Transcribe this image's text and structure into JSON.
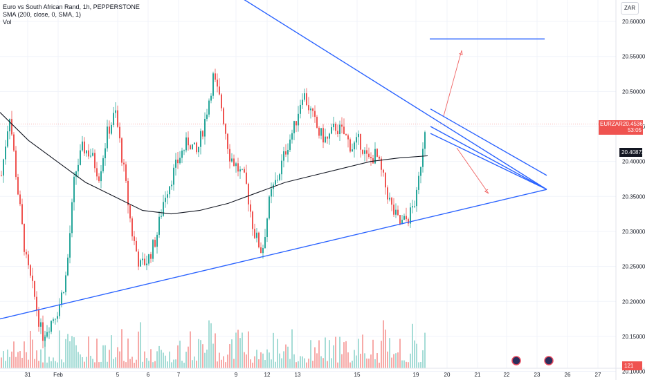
{
  "header": {
    "title": "Euro vs South African Rand, 1h, PEPPERSTONE",
    "sma": "SMA (200, close, 0, SMA, 1)",
    "vol": "Vol"
  },
  "currency": "ZAR",
  "colors": {
    "up": "#26a69a",
    "down": "#ef5350",
    "up_vol": "#a5dcd6",
    "down_vol": "#f7a9a7",
    "trend": "#2962ff",
    "sma": "#131722",
    "arrow": "#f06262"
  },
  "chart_data": {
    "type": "candlestick",
    "instrument": "EURZAR",
    "y_axis_ticks": [
      "20.60000",
      "20.55000",
      "20.50000",
      "20.45000",
      "20.40000",
      "20.35000",
      "20.30000",
      "20.25000",
      "20.20000",
      "20.15000",
      "20.10000"
    ],
    "x_axis_ticks": [
      "31",
      "Feb",
      "5",
      "6",
      "7",
      "9",
      "12",
      "13",
      "15",
      "19",
      "20",
      "21",
      "22",
      "23",
      "26",
      "27"
    ],
    "price_line": {
      "label": "EURZAR",
      "value": "20.45369",
      "countdown": "53:05"
    },
    "sma_label": {
      "value": "20.40872"
    },
    "volume_label": "121",
    "close_path": [
      20.38,
      20.47,
      20.36,
      20.26,
      20.21,
      20.15,
      20.17,
      20.19,
      20.24,
      20.38,
      20.42,
      20.41,
      20.38,
      20.44,
      20.47,
      20.39,
      20.3,
      20.25,
      20.26,
      20.29,
      20.35,
      20.38,
      20.41,
      20.43,
      20.41,
      20.46,
      20.52,
      20.48,
      20.41,
      20.39,
      20.37,
      20.3,
      20.27,
      20.35,
      20.38,
      20.42,
      20.45,
      20.5,
      20.47,
      20.44,
      20.43,
      20.45,
      20.44,
      20.42,
      20.43,
      20.4,
      20.41,
      20.37,
      20.33,
      20.31,
      20.32,
      20.35,
      20.45
    ],
    "sma_path": [
      20.47,
      20.43,
      20.4,
      20.37,
      20.35,
      20.33,
      20.325,
      20.33,
      20.34,
      20.355,
      20.37,
      20.38,
      20.39,
      20.4,
      20.405,
      20.408
    ],
    "trendlines": [
      {
        "from": [
          "31",
          20.175
        ],
        "to": [
          "23",
          20.36
        ],
        "name": "lower-support"
      },
      {
        "from": [
          "31",
          20.69
        ],
        "to": [
          "23",
          20.36
        ],
        "name": "upper-resistance"
      },
      {
        "from": [
          "19",
          20.475
        ],
        "to": [
          "23",
          20.38
        ],
        "name": "channel-upper"
      },
      {
        "from": [
          "19",
          20.45
        ],
        "to": [
          "23",
          20.36
        ],
        "name": "channel-mid"
      },
      {
        "from": [
          "19",
          20.44
        ],
        "to": [
          "23",
          20.36
        ],
        "name": "channel-lower"
      },
      {
        "from": [
          "19",
          20.575
        ],
        "to": [
          "23",
          20.575
        ],
        "name": "target-line"
      }
    ]
  }
}
